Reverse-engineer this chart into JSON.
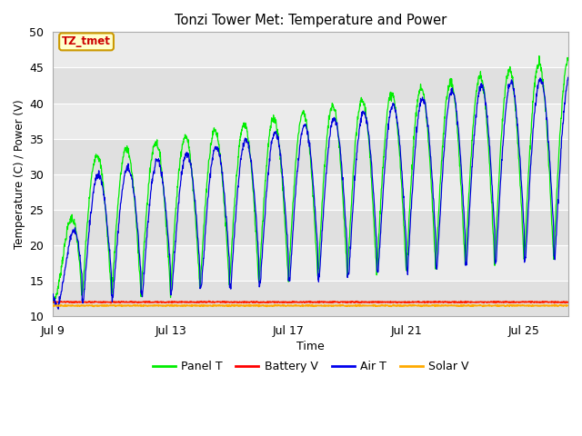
{
  "title": "Tonzi Tower Met: Temperature and Power",
  "xlabel": "Time",
  "ylabel": "Temperature (C) / Power (V)",
  "ylim": [
    10,
    50
  ],
  "yticks": [
    10,
    15,
    20,
    25,
    30,
    35,
    40,
    45,
    50
  ],
  "xtick_labels": [
    "Jul 9",
    "Jul 13",
    "Jul 17",
    "Jul 21",
    "Jul 25"
  ],
  "xtick_positions": [
    0,
    4,
    8,
    12,
    16
  ],
  "legend_labels": [
    "Panel T",
    "Battery V",
    "Air T",
    "Solar V"
  ],
  "legend_colors": [
    "#00ee00",
    "#ff0000",
    "#0000ee",
    "#ffaa00"
  ],
  "panel_color": "#00ee00",
  "battery_color": "#ff2200",
  "air_color": "#0000dd",
  "solar_color": "#ffaa00",
  "ax_bg_dark": "#e0e0e0",
  "ax_bg_light": "#ebebeb",
  "fig_bg": "#ffffff",
  "annotation_text": "TZ_tmet",
  "annotation_bg": "#ffffcc",
  "annotation_border": "#cc9900",
  "n_days": 18,
  "n_points_per_day": 96
}
